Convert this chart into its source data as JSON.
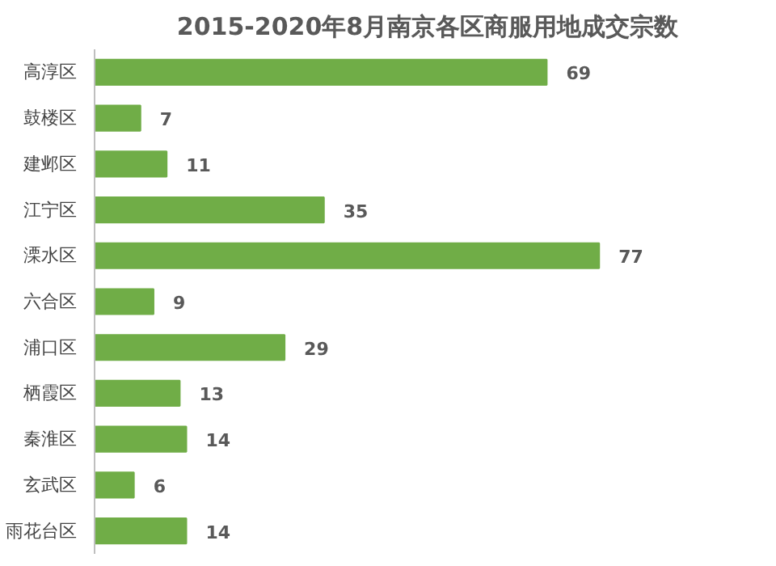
{
  "chart_data": {
    "type": "bar",
    "orientation": "horizontal",
    "title": "2015-2020年8月南京各区商服用地成交宗数",
    "categories": [
      "高淳区",
      "鼓楼区",
      "建邺区",
      "江宁区",
      "溧水区",
      "六合区",
      "浦口区",
      "栖霞区",
      "秦淮区",
      "玄武区",
      "雨花台区"
    ],
    "values": [
      69,
      7,
      11,
      35,
      77,
      9,
      29,
      13,
      14,
      6,
      14
    ],
    "color": "#70ad47",
    "data_labels": true,
    "grid": false
  }
}
